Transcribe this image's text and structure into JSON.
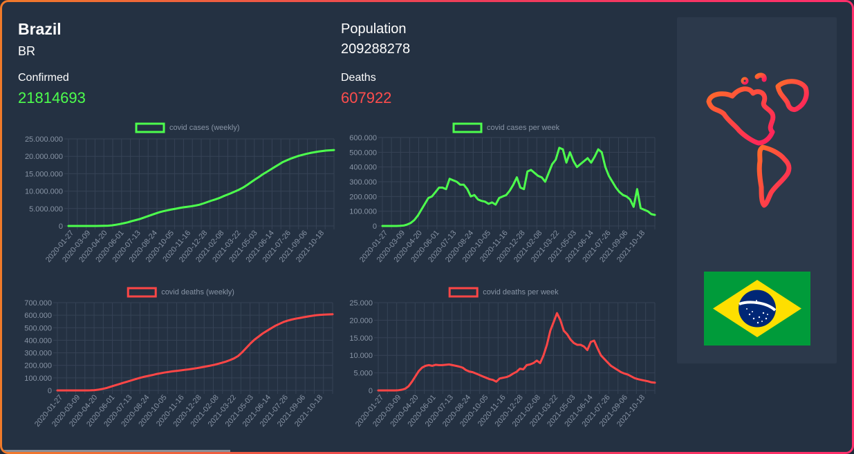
{
  "country": {
    "name": "Brazil",
    "code": "BR"
  },
  "stats": {
    "population_label": "Population",
    "population": "209288278",
    "confirmed_label": "Confirmed",
    "confirmed": "21814693",
    "deaths_label": "Deaths",
    "deaths": "607922"
  },
  "colors": {
    "cases": "#4dff4d",
    "deaths": "#ff4646",
    "grid": "#364356",
    "tick": "#8894a5"
  },
  "icons": {
    "map": "americas-map-icon",
    "flag": "brazil-flag"
  },
  "chart_data": [
    {
      "type": "line",
      "legend": "covid cases (weekly)",
      "color": "cases",
      "ylim": [
        0,
        25000000
      ],
      "yticks": [
        "0",
        "5.000.000",
        "10.000.000",
        "15.000.000",
        "20.000.000",
        "25.000.000"
      ],
      "xticks": [
        "2020-01-27",
        "2020-03-09",
        "2020-04-20",
        "2020-06-01",
        "2020-07-13",
        "2020-08-24",
        "2020-10-05",
        "2020-11-16",
        "2020-12-28",
        "2021-02-08",
        "2021-03-22",
        "2021-05-03",
        "2021-06-14",
        "2021-07-26",
        "2021-09-06",
        "2021-10-18"
      ],
      "values": [
        0,
        0,
        0,
        0,
        0,
        0,
        0,
        0,
        10000,
        30000,
        80000,
        180000,
        350000,
        560000,
        800000,
        1050000,
        1400000,
        1680000,
        2000000,
        2400000,
        2800000,
        3200000,
        3600000,
        3950000,
        4250000,
        4500000,
        4750000,
        4950000,
        5150000,
        5350000,
        5500000,
        5650000,
        5850000,
        6100000,
        6450000,
        6850000,
        7250000,
        7600000,
        8000000,
        8500000,
        8950000,
        9400000,
        9900000,
        10400000,
        11000000,
        11700000,
        12500000,
        13300000,
        14000000,
        14800000,
        15500000,
        16200000,
        16900000,
        17600000,
        18300000,
        18800000,
        19300000,
        19700000,
        20100000,
        20400000,
        20700000,
        20950000,
        21150000,
        21350000,
        21500000,
        21650000,
        21720000,
        21814693
      ]
    },
    {
      "type": "line",
      "legend": "covid cases per week",
      "color": "cases",
      "ylim": [
        0,
        600000
      ],
      "yticks": [
        "0",
        "100.000",
        "200.000",
        "300.000",
        "400.000",
        "500.000",
        "600.000"
      ],
      "xticks": [
        "2020-01-27",
        "2020-03-09",
        "2020-04-20",
        "2020-06-01",
        "2020-07-13",
        "2020-08-24",
        "2020-10-05",
        "2020-11-16",
        "2020-12-28",
        "2021-02-08",
        "2021-03-22",
        "2021-05-03",
        "2021-06-14",
        "2021-07-26",
        "2021-09-06",
        "2021-10-18"
      ],
      "values": [
        0,
        0,
        0,
        0,
        0,
        1000,
        3000,
        10000,
        20000,
        40000,
        70000,
        110000,
        150000,
        190000,
        200000,
        230000,
        260000,
        260000,
        250000,
        320000,
        310000,
        300000,
        280000,
        280000,
        250000,
        200000,
        210000,
        180000,
        170000,
        165000,
        150000,
        160000,
        145000,
        190000,
        200000,
        210000,
        240000,
        280000,
        330000,
        260000,
        250000,
        370000,
        380000,
        360000,
        340000,
        330000,
        300000,
        360000,
        420000,
        450000,
        530000,
        520000,
        430000,
        500000,
        440000,
        400000,
        420000,
        440000,
        460000,
        430000,
        470000,
        520000,
        500000,
        400000,
        340000,
        300000,
        260000,
        230000,
        210000,
        200000,
        180000,
        130000,
        250000,
        120000,
        110000,
        100000,
        80000,
        75000
      ]
    },
    {
      "type": "line",
      "legend": "covid deaths (weekly)",
      "color": "deaths",
      "ylim": [
        0,
        700000
      ],
      "yticks": [
        "0",
        "100.000",
        "200.000",
        "300.000",
        "400.000",
        "500.000",
        "600.000",
        "700.000"
      ],
      "xticks": [
        "2020-01-27",
        "2020-03-09",
        "2020-04-20",
        "2020-06-01",
        "2020-07-13",
        "2020-08-24",
        "2020-10-05",
        "2020-11-16",
        "2020-12-28",
        "2021-02-08",
        "2021-03-22",
        "2021-05-03",
        "2021-06-14",
        "2021-07-26",
        "2021-09-06",
        "2021-10-18"
      ],
      "values": [
        0,
        0,
        0,
        0,
        0,
        0,
        0,
        0,
        500,
        2000,
        6000,
        12000,
        20000,
        30000,
        40000,
        50000,
        60000,
        70000,
        80000,
        90000,
        100000,
        108000,
        115000,
        122000,
        130000,
        136000,
        142000,
        147000,
        152000,
        156000,
        160000,
        164000,
        168000,
        173000,
        178000,
        184000,
        190000,
        196000,
        203000,
        211000,
        220000,
        230000,
        242000,
        255000,
        275000,
        305000,
        340000,
        375000,
        405000,
        430000,
        455000,
        475000,
        495000,
        515000,
        530000,
        545000,
        556000,
        565000,
        572000,
        578000,
        584000,
        590000,
        595000,
        600000,
        603000,
        605000,
        606500,
        607922
      ]
    },
    {
      "type": "line",
      "legend": "covid deaths per week",
      "color": "deaths",
      "ylim": [
        0,
        25000
      ],
      "yticks": [
        "0",
        "5.000",
        "10.000",
        "15.000",
        "20.000",
        "25.000"
      ],
      "xticks": [
        "2020-01-27",
        "2020-03-09",
        "2020-04-20",
        "2020-06-01",
        "2020-07-13",
        "2020-08-24",
        "2020-10-05",
        "2020-11-16",
        "2020-12-28",
        "2021-02-08",
        "2021-03-22",
        "2021-05-03",
        "2021-06-14",
        "2021-07-26",
        "2021-09-06",
        "2021-10-18"
      ],
      "values": [
        0,
        0,
        0,
        0,
        0,
        0,
        50,
        200,
        500,
        1200,
        2500,
        4000,
        5500,
        6500,
        7000,
        7200,
        7000,
        7300,
        7200,
        7200,
        7300,
        7400,
        7200,
        7000,
        6800,
        6500,
        5800,
        5400,
        5200,
        4800,
        4400,
        4000,
        3600,
        3200,
        3000,
        2500,
        3400,
        3600,
        3800,
        4200,
        4800,
        5300,
        6200,
        6000,
        7200,
        7400,
        7800,
        8500,
        7800,
        10000,
        13000,
        17000,
        19500,
        22000,
        20000,
        17000,
        16000,
        14500,
        13500,
        13000,
        13000,
        12500,
        11500,
        13800,
        14200,
        12000,
        10000,
        9000,
        8000,
        7000,
        6400,
        5800,
        5200,
        4800,
        4500,
        4000,
        3500,
        3200,
        3000,
        2800,
        2600,
        2300,
        2200
      ]
    }
  ]
}
